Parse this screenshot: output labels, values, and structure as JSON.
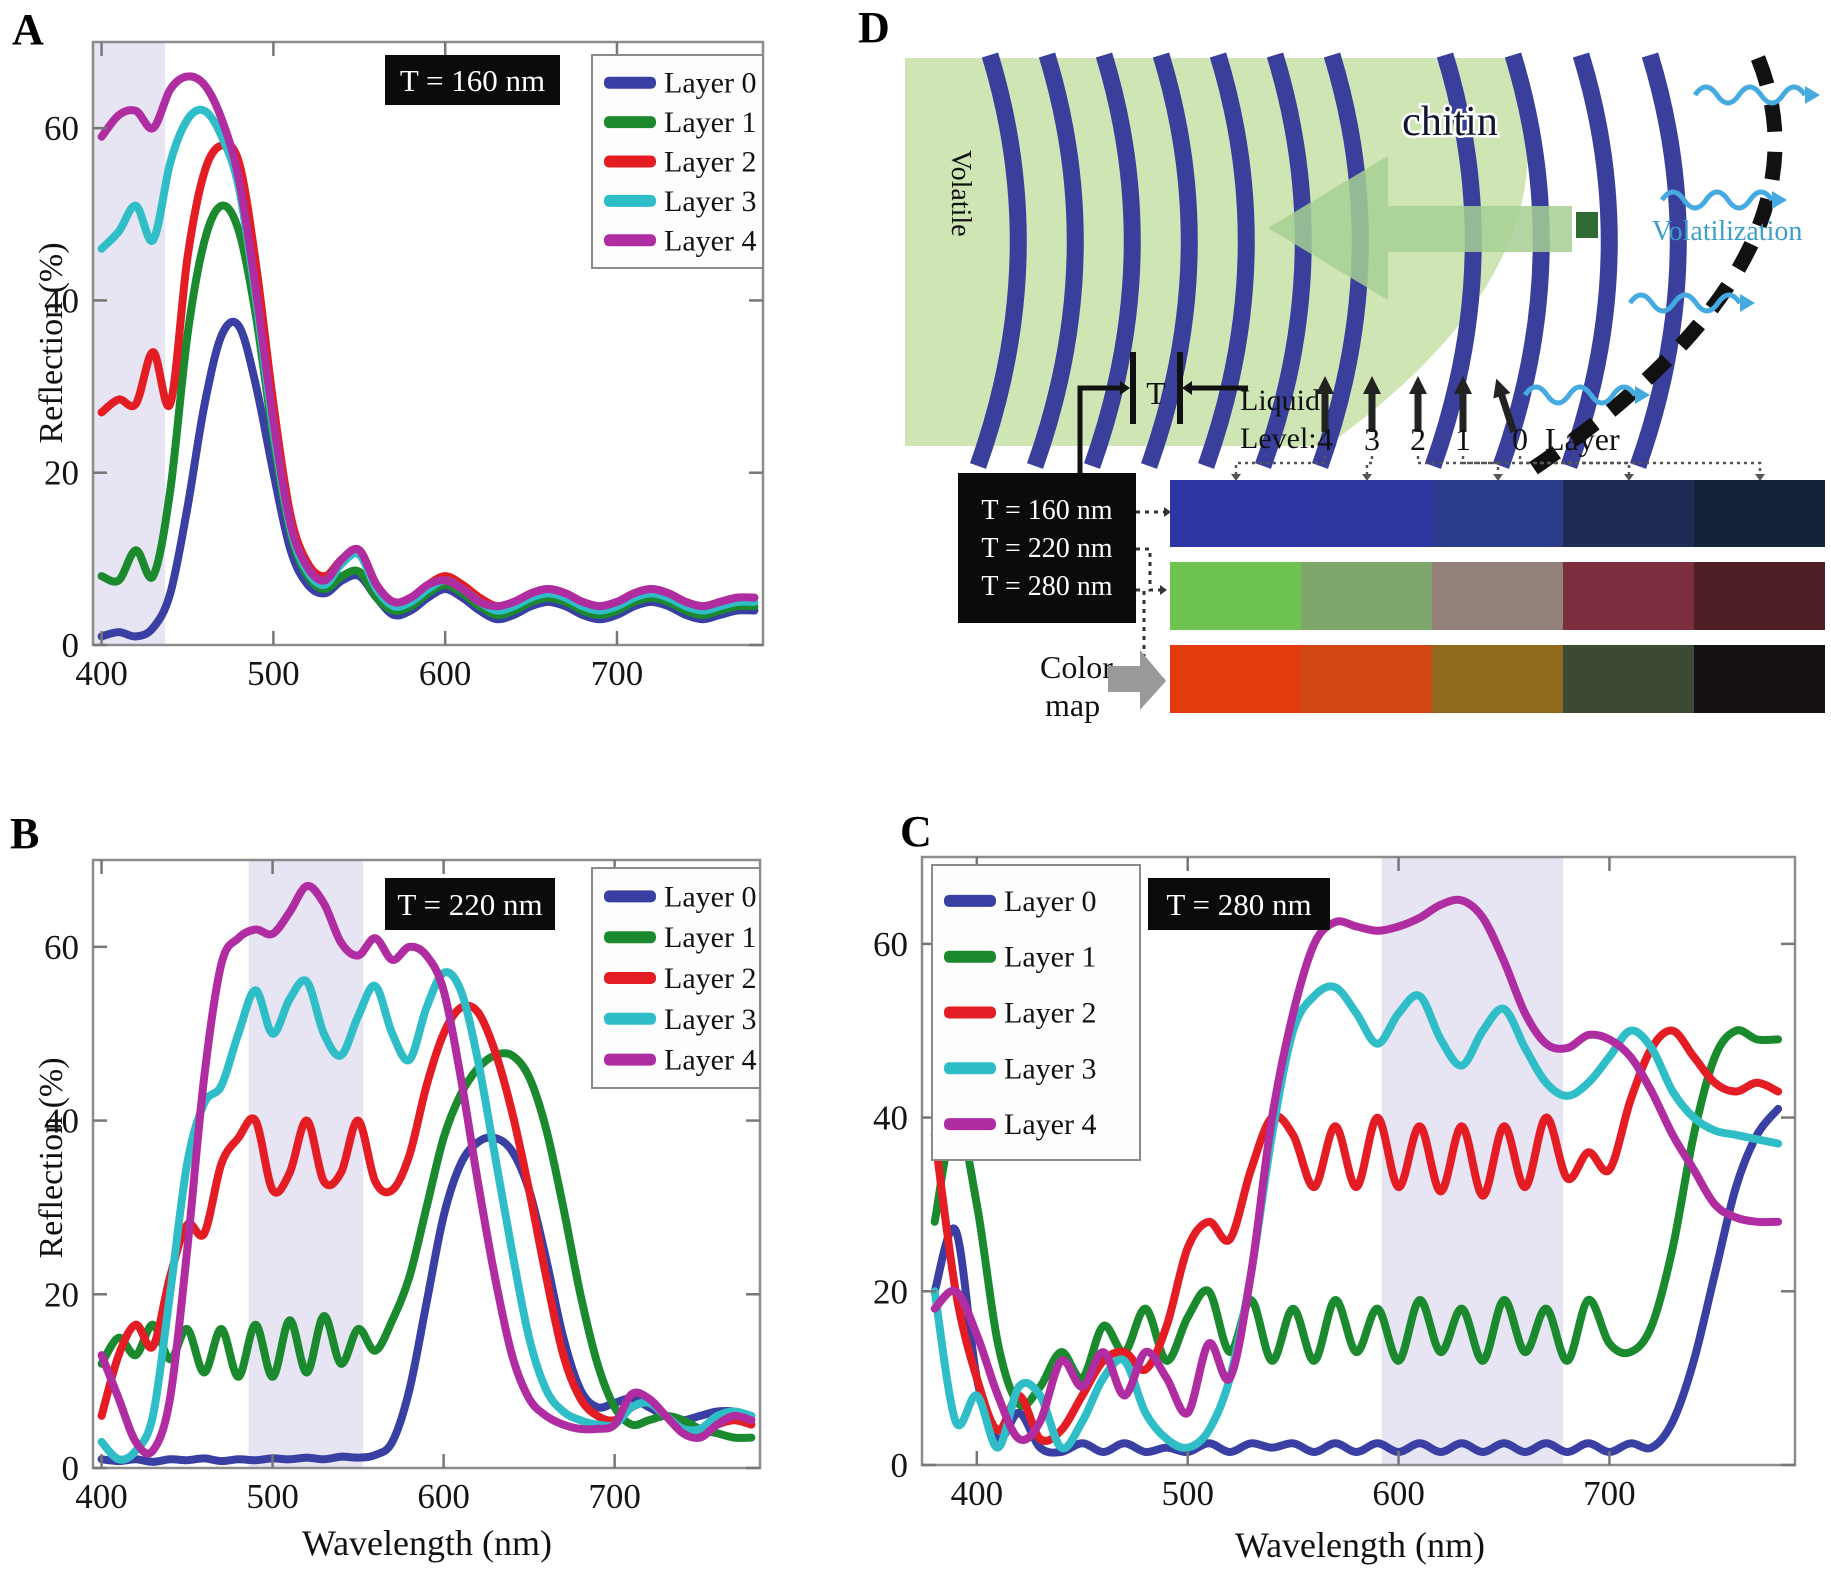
{
  "panels": {
    "a": {
      "label": "A",
      "ylabel": "Reflection (%)"
    },
    "b": {
      "label": "B",
      "ylabel": "Reflection (%)",
      "xlabel": "Wavelength (nm)"
    },
    "c": {
      "label": "C",
      "xlabel": "Wavelength (nm)"
    },
    "d": {
      "label": "D"
    }
  },
  "colors": {
    "layers": [
      "#3a3fa3",
      "#1b8a2f",
      "#e41d25",
      "#2fbec8",
      "#b02da1"
    ],
    "shaded_band": "#e7e4f3",
    "plot_border": "#8c8c8c",
    "arc_blue": "#3a3f9c",
    "liquid_green": "#cfe6b4",
    "wavy_arrow": "#44aadf",
    "volatilization_text": "#3b9fc9",
    "green_arrow": "#a6cf93",
    "gray_arrow": "#999999",
    "title_box_bg": "#0b0b0b"
  },
  "chart_data": [
    {
      "id": "a",
      "type": "line",
      "title": "T = 160 nm",
      "xlabel": "",
      "ylabel": "Reflection (%)",
      "x_start": 400,
      "x_step": 10,
      "x_ticks": [
        400,
        500,
        600,
        700
      ],
      "y_ticks": [
        0,
        20,
        40,
        60
      ],
      "xlim": [
        395,
        785
      ],
      "ylim": [
        0,
        70
      ],
      "shaded_band_nm": [
        395,
        437
      ],
      "grid": false,
      "legend_position": "top-right",
      "series": [
        {
          "name": "Layer 0",
          "color": "#3a3fa3",
          "values": [
            1,
            1.5,
            1,
            2,
            6,
            16,
            28,
            36,
            37,
            30,
            20,
            11,
            7,
            6,
            7.5,
            8,
            5.5,
            3.5,
            4,
            5.5,
            6.5,
            5.5,
            4,
            3,
            3.5,
            4.5,
            5,
            4.5,
            3.5,
            3,
            3.5,
            4.5,
            5,
            4.5,
            3.5,
            3,
            3.5,
            4,
            4
          ]
        },
        {
          "name": "Layer 1",
          "color": "#1b8a2f",
          "values": [
            8,
            7.5,
            11,
            8,
            18,
            36,
            47,
            51,
            48,
            38,
            24,
            13,
            8,
            6.5,
            8,
            8.5,
            5.5,
            4,
            4.5,
            6,
            7,
            6,
            4.5,
            3.5,
            4,
            5,
            5.5,
            5,
            4,
            3.5,
            4,
            5,
            5.5,
            5,
            4,
            3.5,
            4,
            4.5,
            4.5
          ]
        },
        {
          "name": "Layer 2",
          "color": "#e41d25",
          "values": [
            27,
            28.5,
            28,
            34,
            28,
            45,
            55,
            58,
            56,
            44,
            28,
            15,
            9.5,
            8,
            10,
            11,
            7,
            5,
            5.5,
            7,
            8,
            7,
            5.5,
            4.5,
            5,
            6,
            6.5,
            6,
            5,
            4.5,
            5,
            6,
            6.5,
            6,
            5,
            4.5,
            5,
            5.5,
            5.5
          ]
        },
        {
          "name": "Layer 3",
          "color": "#2fbec8",
          "values": [
            46,
            48,
            51,
            47,
            56,
            61,
            62,
            59,
            53,
            40,
            25,
            13.5,
            8.5,
            7,
            9.5,
            10.5,
            6.5,
            4.5,
            5,
            6.5,
            7.5,
            6.5,
            5,
            4,
            4.5,
            5.5,
            6,
            5.5,
            4.5,
            4,
            4.5,
            5.5,
            6,
            5.5,
            4.5,
            4,
            4.5,
            5,
            5
          ]
        },
        {
          "name": "Layer 4",
          "color": "#b02da1",
          "values": [
            59,
            61.5,
            62,
            60,
            64.5,
            66,
            65,
            61,
            54,
            41,
            26,
            14,
            9,
            7.5,
            10,
            11,
            7,
            5,
            5.5,
            7,
            7.5,
            6.5,
            5,
            4.5,
            5,
            6,
            6.5,
            6,
            5,
            4.5,
            5,
            6,
            6.5,
            6,
            5,
            4.5,
            5,
            5.5,
            5.5
          ]
        }
      ]
    },
    {
      "id": "b",
      "type": "line",
      "title": "T = 220 nm",
      "xlabel": "Wavelength (nm)",
      "ylabel": "Reflection (%)",
      "x_start": 400,
      "x_step": 10,
      "x_ticks": [
        400,
        500,
        600,
        700
      ],
      "y_ticks": [
        0,
        20,
        40,
        60
      ],
      "xlim": [
        395,
        785
      ],
      "ylim": [
        0,
        70
      ],
      "shaded_band_nm": [
        486,
        553
      ],
      "grid": false,
      "legend_position": "top-right",
      "series": [
        {
          "name": "Layer 0",
          "color": "#3a3fa3",
          "values": [
            1,
            0.8,
            1,
            0.7,
            1,
            0.9,
            1.1,
            0.8,
            1,
            0.9,
            1.1,
            1,
            1.2,
            1,
            1.3,
            1.2,
            1.5,
            3,
            9,
            19,
            29,
            35,
            37.5,
            38,
            36.5,
            32,
            24,
            15,
            9,
            7,
            7.5,
            8,
            7,
            6,
            5.5,
            6,
            6.5,
            6.5,
            6
          ]
        },
        {
          "name": "Layer 1",
          "color": "#1b8a2f",
          "values": [
            12,
            15,
            13,
            16.5,
            12.5,
            16,
            11,
            16,
            10.5,
            16.5,
            10.5,
            17,
            11,
            17.5,
            12,
            16,
            13.5,
            17,
            22,
            30,
            38,
            43,
            46,
            47.5,
            47.5,
            45,
            39,
            30,
            20,
            12,
            7,
            5,
            5.5,
            6,
            5.5,
            4.5,
            4,
            3.5,
            3.5
          ]
        },
        {
          "name": "Layer 2",
          "color": "#e41d25",
          "values": [
            6,
            13,
            16.5,
            14,
            22,
            28,
            27,
            35,
            38,
            40,
            32,
            34,
            40,
            33,
            34,
            40,
            33,
            32,
            36,
            44,
            50,
            53,
            52.5,
            48,
            41,
            32,
            22,
            13,
            8,
            6,
            5.5,
            7,
            7.5,
            6,
            4.5,
            4,
            5,
            5.5,
            5
          ]
        },
        {
          "name": "Layer 3",
          "color": "#2fbec8",
          "values": [
            3,
            1,
            2,
            6,
            20,
            35,
            42,
            44,
            50,
            55,
            50,
            54,
            56,
            50,
            47.5,
            52,
            55.5,
            50,
            47,
            53,
            57,
            55,
            47,
            36,
            25,
            15,
            9,
            6.5,
            5.5,
            5,
            5,
            7,
            7.5,
            6,
            4.5,
            4.5,
            6,
            6.5,
            6
          ]
        },
        {
          "name": "Layer 4",
          "color": "#b02da1",
          "values": [
            13,
            8,
            3,
            2,
            8,
            25,
            45,
            58,
            61,
            62,
            61.5,
            64,
            67,
            65,
            60.5,
            59,
            61,
            58.5,
            60,
            59,
            55,
            45,
            33,
            22,
            13,
            8,
            6,
            5,
            4.5,
            4.5,
            5,
            8.5,
            8,
            6,
            4,
            3.5,
            5,
            6,
            5.5
          ]
        }
      ]
    },
    {
      "id": "c",
      "type": "line",
      "title": "T = 280 nm",
      "xlabel": "Wavelength (nm)",
      "ylabel": "",
      "x_start": 380,
      "x_step": 10,
      "x_ticks": [
        400,
        500,
        600,
        700
      ],
      "y_ticks": [
        0,
        20,
        40,
        60
      ],
      "xlim": [
        374,
        788
      ],
      "ylim": [
        0,
        70
      ],
      "shaded_band_nm": [
        592,
        678
      ],
      "grid": false,
      "legend_position": "top-left",
      "series": [
        {
          "name": "Layer 0",
          "color": "#3a3fa3",
          "values": [
            20,
            27,
            10,
            3,
            6,
            2,
            1.5,
            2.5,
            1.5,
            2.5,
            1.5,
            2,
            1.5,
            2.5,
            1.5,
            2.5,
            2,
            2.5,
            1.5,
            2.5,
            1.5,
            2.5,
            1.5,
            2.5,
            1.5,
            2.5,
            1.5,
            2.5,
            1.5,
            2.5,
            1.5,
            2.5,
            1.5,
            2.5,
            2,
            5,
            12,
            22,
            32,
            38,
            41
          ]
        },
        {
          "name": "Layer 1",
          "color": "#1b8a2f",
          "values": [
            28,
            40,
            30,
            14,
            7,
            9,
            13,
            10,
            16,
            13,
            18,
            12,
            17,
            20,
            13,
            19,
            12,
            18,
            12,
            19,
            13,
            18,
            12,
            19,
            13,
            18,
            12,
            19,
            13,
            18,
            12,
            19,
            14,
            13,
            16,
            25,
            38,
            47,
            50,
            49,
            49
          ]
        },
        {
          "name": "Layer 2",
          "color": "#e41d25",
          "values": [
            38,
            20,
            10,
            4,
            8,
            3,
            4,
            8,
            12,
            13,
            11,
            16,
            25,
            28,
            26,
            34,
            40,
            38,
            32,
            39,
            32,
            40,
            32,
            39,
            31.5,
            39,
            31,
            39,
            32,
            40,
            33,
            36,
            34,
            42,
            48,
            50,
            47,
            44,
            43,
            44,
            43
          ]
        },
        {
          "name": "Layer 3",
          "color": "#2fbec8",
          "values": [
            20,
            5,
            8,
            2,
            9,
            8,
            2,
            5,
            10,
            12,
            6,
            3,
            2,
            4,
            10,
            22,
            38,
            50,
            54,
            55,
            52,
            48.5,
            52,
            54,
            49,
            46,
            50,
            52.5,
            48,
            44,
            42.5,
            44,
            47,
            50,
            48,
            43,
            40,
            38.5,
            38,
            37.5,
            37
          ]
        },
        {
          "name": "Layer 4",
          "color": "#b02da1",
          "values": [
            18,
            20,
            15,
            8,
            3,
            5,
            12,
            9,
            13,
            8,
            13,
            10,
            6,
            14,
            10,
            22,
            40,
            52,
            60,
            62.5,
            62,
            61.5,
            62,
            63,
            64.5,
            65,
            63,
            58,
            52,
            48.5,
            48,
            49.5,
            49,
            47,
            43,
            38,
            34,
            30,
            28.5,
            28,
            28
          ]
        }
      ]
    }
  ],
  "diagram": {
    "volatile": "Volatile",
    "chitin": "chitin",
    "volatilization": "Volatilization",
    "t_symbol": "T",
    "liquid_line1": "Liquid",
    "liquid_line2": "Level:",
    "levels": [
      "4",
      "3",
      "2",
      "1",
      "0"
    ],
    "layer_word": "Layer",
    "thickness_labels": [
      "T = 160 nm",
      "T = 220 nm",
      "T = 280 nm"
    ],
    "colormap_line1": "Color",
    "colormap_line2": "map",
    "color_rows": [
      {
        "name": "T = 160 nm",
        "colors": [
          "#2e36a5",
          "#2d38a2",
          "#2c3c8c",
          "#1f2b55",
          "#15233a"
        ]
      },
      {
        "name": "T = 220 nm",
        "colors": [
          "#6ec24f",
          "#80a76b",
          "#94817c",
          "#7c2e3f",
          "#4e2026"
        ]
      },
      {
        "name": "T = 280 nm",
        "colors": [
          "#e23b0e",
          "#d04713",
          "#8f691c",
          "#3c4a33",
          "#141014"
        ]
      }
    ]
  }
}
